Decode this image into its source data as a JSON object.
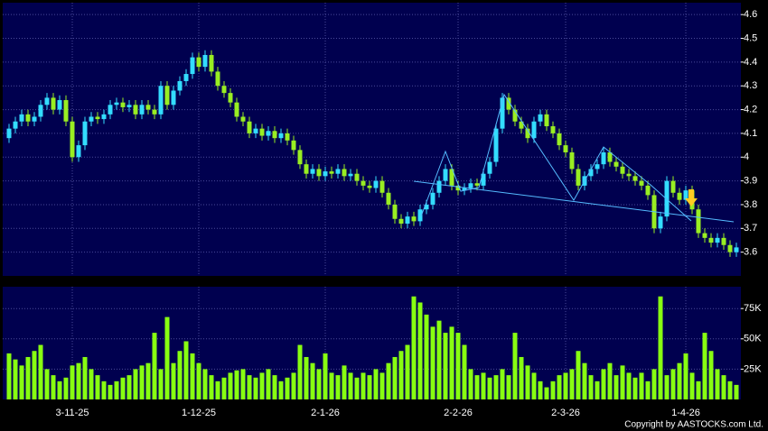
{
  "chart_data": [
    {
      "type": "candlestick",
      "up_color": "#33ddff",
      "down_color": "#99ee22",
      "grid": true,
      "ylim": [
        3.5,
        4.65
      ],
      "yticks": [
        3.6,
        3.7,
        3.8,
        3.9,
        4,
        4.1,
        4.2,
        4.3,
        4.4,
        4.5,
        4.6
      ],
      "open": [
        4.08,
        4.12,
        4.15,
        4.18,
        4.15,
        4.17,
        4.22,
        4.25,
        4.2,
        4.24,
        4.15,
        4.0,
        4.05,
        4.15,
        4.17,
        4.16,
        4.18,
        4.22,
        4.23,
        4.21,
        4.22,
        4.18,
        4.22,
        4.2,
        4.18,
        4.3,
        4.22,
        4.28,
        4.32,
        4.35,
        4.42,
        4.38,
        4.43,
        4.36,
        4.3,
        4.27,
        4.23,
        4.17,
        4.15,
        4.1,
        4.12,
        4.09,
        4.11,
        4.08,
        4.1,
        4.07,
        4.03,
        3.97,
        3.93,
        3.95,
        3.92,
        3.94,
        3.93,
        3.95,
        3.92,
        3.93,
        3.9,
        3.88,
        3.87,
        3.9,
        3.85,
        3.8,
        3.74,
        3.72,
        3.75,
        3.73,
        3.78,
        3.8,
        3.85,
        3.9,
        3.95,
        3.88,
        3.86,
        3.87,
        3.89,
        3.88,
        3.93,
        3.98,
        4.12,
        4.25,
        4.2,
        4.15,
        4.12,
        4.08,
        4.15,
        4.18,
        4.13,
        4.1,
        4.05,
        4.02,
        3.95,
        3.88,
        3.92,
        3.95,
        3.97,
        4.02,
        3.98,
        3.96,
        3.93,
        3.92,
        3.9,
        3.88,
        3.84,
        3.7,
        3.75,
        3.9,
        3.85,
        3.82,
        3.86,
        3.78,
        3.68,
        3.66,
        3.64,
        3.66,
        3.63,
        3.6
      ],
      "high": [
        4.14,
        4.17,
        4.2,
        4.2,
        4.19,
        4.24,
        4.27,
        4.27,
        4.26,
        4.26,
        4.17,
        4.07,
        4.17,
        4.19,
        4.19,
        4.2,
        4.24,
        4.25,
        4.25,
        4.24,
        4.24,
        4.24,
        4.24,
        4.22,
        4.32,
        4.32,
        4.3,
        4.34,
        4.37,
        4.44,
        4.44,
        4.45,
        4.45,
        4.38,
        4.32,
        4.29,
        4.25,
        4.19,
        4.17,
        4.14,
        4.14,
        4.13,
        4.13,
        4.12,
        4.12,
        4.09,
        4.05,
        3.99,
        3.97,
        3.97,
        3.96,
        3.96,
        3.97,
        3.97,
        3.95,
        3.95,
        3.92,
        3.9,
        3.92,
        3.92,
        3.87,
        3.82,
        3.76,
        3.77,
        3.77,
        3.8,
        3.82,
        3.87,
        3.92,
        3.97,
        3.97,
        3.9,
        3.89,
        3.91,
        3.91,
        3.95,
        4.0,
        4.14,
        4.27,
        4.27,
        4.22,
        4.17,
        4.14,
        4.17,
        4.2,
        4.2,
        4.15,
        4.12,
        4.07,
        4.04,
        3.97,
        3.94,
        3.97,
        3.99,
        4.04,
        4.04,
        4.0,
        3.98,
        3.95,
        3.94,
        3.92,
        3.9,
        3.86,
        3.77,
        3.92,
        3.92,
        3.87,
        3.88,
        3.88,
        3.8,
        3.7,
        3.68,
        3.68,
        3.68,
        3.65,
        3.64
      ],
      "low": [
        4.06,
        4.1,
        4.13,
        4.13,
        4.13,
        4.15,
        4.2,
        4.18,
        4.18,
        4.13,
        3.98,
        3.98,
        4.03,
        4.13,
        4.14,
        4.14,
        4.16,
        4.2,
        4.19,
        4.19,
        4.16,
        4.16,
        4.18,
        4.16,
        4.16,
        4.2,
        4.2,
        4.26,
        4.3,
        4.33,
        4.36,
        4.36,
        4.34,
        4.28,
        4.25,
        4.21,
        4.15,
        4.13,
        4.08,
        4.08,
        4.07,
        4.07,
        4.06,
        4.06,
        4.05,
        4.01,
        3.95,
        3.91,
        3.91,
        3.9,
        3.9,
        3.91,
        3.91,
        3.9,
        3.9,
        3.88,
        3.86,
        3.85,
        3.85,
        3.83,
        3.78,
        3.72,
        3.7,
        3.7,
        3.71,
        3.71,
        3.76,
        3.78,
        3.83,
        3.88,
        3.86,
        3.84,
        3.84,
        3.85,
        3.86,
        3.86,
        3.91,
        3.96,
        4.1,
        4.18,
        4.13,
        4.1,
        4.06,
        4.06,
        4.13,
        4.11,
        4.08,
        4.03,
        4.0,
        3.93,
        3.86,
        3.86,
        3.9,
        3.93,
        3.95,
        3.96,
        3.94,
        3.91,
        3.9,
        3.88,
        3.86,
        3.82,
        3.68,
        3.68,
        3.73,
        3.83,
        3.8,
        3.8,
        3.76,
        3.66,
        3.64,
        3.62,
        3.62,
        3.61,
        3.58,
        3.58
      ],
      "close": [
        4.12,
        4.15,
        4.18,
        4.15,
        4.17,
        4.22,
        4.25,
        4.2,
        4.24,
        4.15,
        4.0,
        4.05,
        4.15,
        4.17,
        4.16,
        4.18,
        4.22,
        4.23,
        4.21,
        4.22,
        4.18,
        4.22,
        4.2,
        4.18,
        4.3,
        4.22,
        4.28,
        4.32,
        4.35,
        4.42,
        4.38,
        4.43,
        4.36,
        4.3,
        4.27,
        4.23,
        4.17,
        4.15,
        4.1,
        4.12,
        4.09,
        4.11,
        4.08,
        4.1,
        4.07,
        4.03,
        3.97,
        3.93,
        3.95,
        3.92,
        3.94,
        3.93,
        3.95,
        3.92,
        3.93,
        3.9,
        3.88,
        3.87,
        3.9,
        3.85,
        3.8,
        3.74,
        3.72,
        3.75,
        3.73,
        3.78,
        3.8,
        3.85,
        3.9,
        3.95,
        3.88,
        3.86,
        3.87,
        3.89,
        3.88,
        3.93,
        3.98,
        4.12,
        4.25,
        4.2,
        4.15,
        4.12,
        4.08,
        4.15,
        4.18,
        4.13,
        4.1,
        4.05,
        4.02,
        3.95,
        3.88,
        3.92,
        3.95,
        3.97,
        4.02,
        3.98,
        3.96,
        3.93,
        3.92,
        3.9,
        3.88,
        3.84,
        3.7,
        3.75,
        3.9,
        3.85,
        3.82,
        3.86,
        3.78,
        3.68,
        3.66,
        3.64,
        3.66,
        3.63,
        3.6,
        3.62
      ]
    },
    {
      "type": "bar",
      "color": "#88ff11",
      "grid": true,
      "ylim": [
        0,
        93000
      ],
      "yticks": [
        {
          "value": 25000,
          "label": "25K"
        },
        {
          "value": 50000,
          "label": "50K"
        },
        {
          "value": 75000,
          "label": "75K"
        }
      ],
      "categories": [
        null,
        null,
        null,
        null,
        null,
        null,
        null,
        null,
        null,
        null,
        "3-11-25",
        null,
        null,
        null,
        null,
        null,
        null,
        null,
        null,
        null,
        null,
        null,
        null,
        null,
        null,
        null,
        null,
        null,
        null,
        null,
        "1-12-25",
        null,
        null,
        null,
        null,
        null,
        null,
        null,
        null,
        null,
        null,
        null,
        null,
        null,
        null,
        null,
        null,
        null,
        null,
        null,
        "2-1-26",
        null,
        null,
        null,
        null,
        null,
        null,
        null,
        null,
        null,
        null,
        null,
        null,
        null,
        null,
        null,
        null,
        null,
        null,
        null,
        null,
        "2-2-26",
        null,
        null,
        null,
        null,
        null,
        null,
        null,
        null,
        null,
        null,
        null,
        null,
        null,
        null,
        null,
        null,
        "2-3-26",
        null,
        null,
        null,
        null,
        null,
        null,
        null,
        null,
        null,
        null,
        null,
        null,
        null,
        null,
        null,
        null,
        null,
        null,
        "1-4-26",
        null,
        null,
        null,
        null,
        null,
        null,
        null,
        null
      ],
      "values": [
        38000,
        33000,
        28000,
        35000,
        40000,
        45000,
        25000,
        20000,
        15000,
        18000,
        28000,
        30000,
        35000,
        25000,
        20000,
        15000,
        12000,
        15000,
        18000,
        20000,
        25000,
        28000,
        30000,
        55000,
        25000,
        68000,
        30000,
        40000,
        48000,
        38000,
        30000,
        25000,
        20000,
        15000,
        18000,
        22000,
        24000,
        25000,
        20000,
        18000,
        22000,
        25000,
        20000,
        15000,
        18000,
        22000,
        45000,
        35000,
        30000,
        25000,
        38000,
        22000,
        20000,
        28000,
        22000,
        18000,
        22000,
        20000,
        25000,
        22000,
        30000,
        35000,
        40000,
        45000,
        85000,
        80000,
        70000,
        60000,
        65000,
        55000,
        60000,
        55000,
        45000,
        25000,
        20000,
        22000,
        18000,
        20000,
        25000,
        20000,
        55000,
        35000,
        28000,
        22000,
        15000,
        10000,
        15000,
        20000,
        22000,
        25000,
        40000,
        30000,
        20000,
        15000,
        25000,
        30000,
        20000,
        28000,
        22000,
        18000,
        22000,
        15000,
        25000,
        85000,
        20000,
        25000,
        30000,
        38000,
        22000,
        15000,
        55000,
        40000,
        25000,
        20000,
        15000,
        12000
      ]
    }
  ],
  "footer": "Copyright by AASTOCKS.com Ltd."
}
